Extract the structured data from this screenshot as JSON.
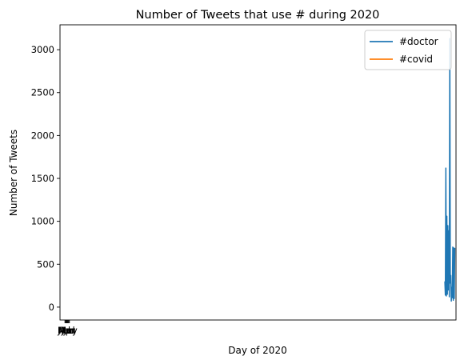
{
  "chart_data": {
    "type": "line",
    "title": "Number of Tweets that use # during 2020",
    "xlabel": "Day of 2020",
    "ylabel": "Number of Tweets",
    "xlim": [
      -20,
      1580
    ],
    "ylim": [
      -150,
      3290
    ],
    "yticks": [
      0,
      500,
      1000,
      1500,
      2000,
      2500,
      3000
    ],
    "xticks": [
      {
        "x": 0,
        "label": "Jan"
      },
      {
        "x": 3,
        "label": "Feb"
      },
      {
        "x": 6,
        "label": "Mar"
      },
      {
        "x": 9,
        "label": "Apr"
      },
      {
        "x": 12,
        "label": "May"
      },
      {
        "x": 15,
        "label": "Jun"
      },
      {
        "x": 18,
        "label": "Jul"
      }
    ],
    "grid": false,
    "legend": "upper right",
    "series": [
      {
        "name": "#doctor",
        "color": "#1f77b4",
        "points": [
          [
            1535,
            300
          ],
          [
            1537,
            140
          ],
          [
            1539,
            1620
          ],
          [
            1541,
            130
          ],
          [
            1543,
            1060
          ],
          [
            1545,
            150
          ],
          [
            1547,
            950
          ],
          [
            1549,
            200
          ],
          [
            1551,
            890
          ],
          [
            1553,
            120
          ],
          [
            1555,
            3130
          ],
          [
            1557,
            280
          ],
          [
            1559,
            370
          ],
          [
            1561,
            70
          ],
          [
            1563,
            230
          ],
          [
            1565,
            110
          ],
          [
            1567,
            700
          ],
          [
            1569,
            80
          ],
          [
            1571,
            690
          ],
          [
            1573,
            100
          ],
          [
            1575,
            690
          ]
        ]
      },
      {
        "name": "#covid",
        "color": "#ff7f0e",
        "points": []
      }
    ]
  }
}
